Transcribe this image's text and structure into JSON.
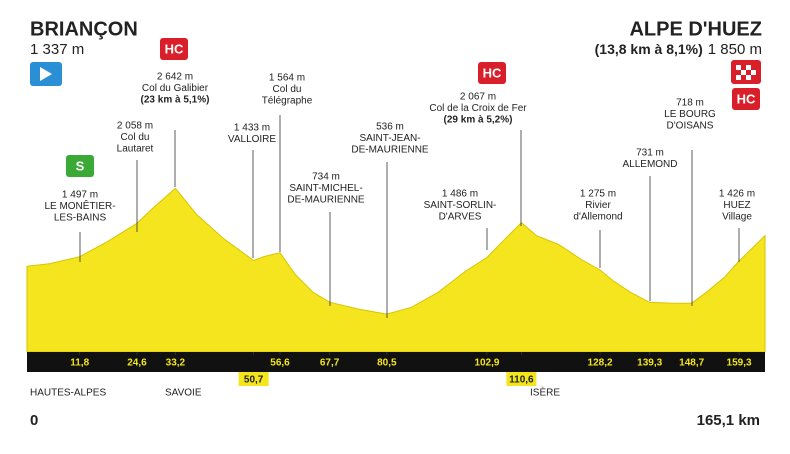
{
  "chart_data": {
    "type": "area",
    "start": {
      "name": "BRIANÇON",
      "altitude": "1 337 m"
    },
    "finish": {
      "name": "ALPE D'HUEZ",
      "climb": "(13,8 km à 8,1%)",
      "altitude": "1 850 m"
    },
    "badges": {
      "hc": "HC",
      "sprint": "S"
    },
    "annotations": [
      {
        "lines": [
          "1 497 m",
          "LE MONÊTIER-",
          "LES-BAINS"
        ]
      },
      {
        "lines": [
          "2 058 m",
          "Col du",
          "Lautaret"
        ]
      },
      {
        "lines": [
          "2 642 m",
          "Col du Galibier",
          "(23 km à 5,1%)"
        ]
      },
      {
        "lines": [
          "1 433 m",
          "VALLOIRE"
        ]
      },
      {
        "lines": [
          "1 564 m",
          "Col du",
          "Télégraphe"
        ]
      },
      {
        "lines": [
          "734 m",
          "SAINT-MICHEL-",
          "DE-MAURIENNE"
        ]
      },
      {
        "lines": [
          "536 m",
          "SAINT-JEAN-",
          "DE-MAURIENNE"
        ]
      },
      {
        "lines": [
          "1 486 m",
          "SAINT-SORLIN-",
          "D'ARVES"
        ]
      },
      {
        "lines": [
          "2 067 m",
          "Col de la Croix de Fer",
          "(29 km à 5,2%)"
        ]
      },
      {
        "lines": [
          "1 275 m",
          "Rivier",
          "d'Allemond"
        ]
      },
      {
        "lines": [
          "731 m",
          "ALLEMOND"
        ]
      },
      {
        "lines": [
          "718 m",
          "LE BOURG",
          "D'OISANS"
        ]
      },
      {
        "lines": [
          "1 426 m",
          "HUEZ",
          "Village"
        ]
      }
    ],
    "regions": [
      "HAUTES-ALPES",
      "SAVOIE",
      "ISÈRE"
    ],
    "start_km": "0",
    "end_km": "165,1 km",
    "color": "#f4e51e",
    "x": [
      0,
      5,
      11.8,
      18,
      24.6,
      28,
      33.2,
      38,
      44,
      50.7,
      53,
      56.6,
      60,
      64,
      67.7,
      74,
      80.5,
      86,
      92,
      98,
      102.9,
      107,
      110.6,
      114,
      119,
      124,
      128.2,
      131,
      135,
      139.3,
      144,
      148.7,
      152,
      156,
      159.3,
      165.1
    ],
    "values": [
      1337,
      1380,
      1497,
      1750,
      2058,
      2300,
      2642,
      2200,
      1800,
      1433,
      1500,
      1564,
      1200,
      900,
      734,
      620,
      536,
      650,
      900,
      1250,
      1486,
      1800,
      2067,
      1850,
      1700,
      1450,
      1275,
      1100,
      900,
      731,
      720,
      718,
      900,
      1150,
      1426,
      1850
    ],
    "xlim": [
      0,
      165.1
    ],
    "ylim": [
      -100,
      2800
    ],
    "xticks": [
      {
        "value": 11.8,
        "label": "11,8"
      },
      {
        "value": 24.6,
        "label": "24,6"
      },
      {
        "value": 33.2,
        "label": "33,2"
      },
      {
        "value": 50.7,
        "label": "50,7"
      },
      {
        "value": 56.6,
        "label": "56,6"
      },
      {
        "value": 67.7,
        "label": "67,7"
      },
      {
        "value": 80.5,
        "label": "80,5"
      },
      {
        "value": 102.9,
        "label": "102,9"
      },
      {
        "value": 110.6,
        "label": "110,6"
      },
      {
        "value": 128.2,
        "label": "128,2"
      },
      {
        "value": 139.3,
        "label": "139,3"
      },
      {
        "value": 148.7,
        "label": "148,7"
      },
      {
        "value": 159.3,
        "label": "159,3"
      }
    ]
  }
}
